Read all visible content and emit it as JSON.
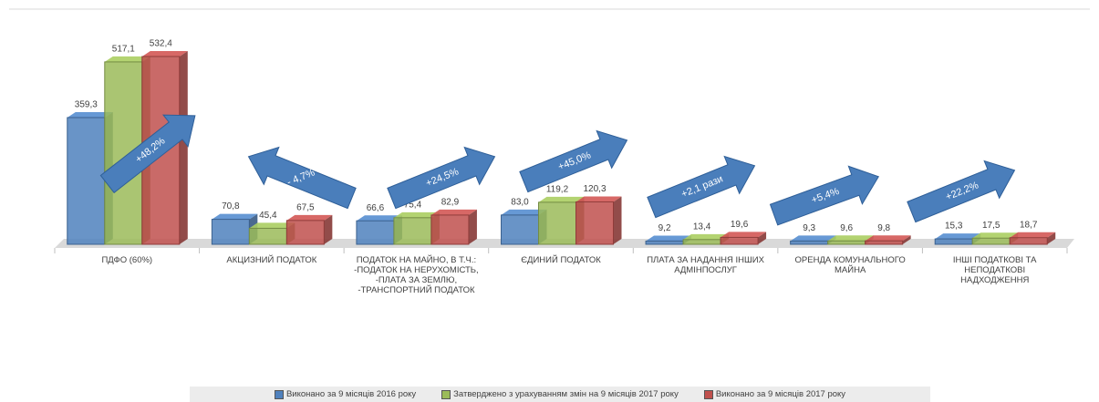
{
  "chart_data": {
    "type": "bar",
    "categories": [
      "ПДФО (60%)",
      "АКЦИЗНИЙ ПОДАТОК",
      "ПОДАТОК НА МАЙНО, В Т.Ч.: -ПОДАТОК НА НЕРУХОМІСТЬ, -ПЛАТА ЗА ЗЕМЛЮ, -ТРАНСПОРТНИЙ ПОДАТОК",
      "ЄДИНИЙ ПОДАТОК",
      "ПЛАТА ЗА НАДАННЯ ІНШИХ АДМІНПОСЛУГ",
      "ОРЕНДА КОМУНАЛЬНОГО МАЙНА",
      "ІНШІ ПОДАТКОВІ ТА НЕПОДАТКОВІ НАДХОДЖЕННЯ"
    ],
    "series": [
      {
        "name": "Виконано за 9 місяців 2016 року",
        "color": "#4f81bd",
        "values": [
          359.3,
          70.8,
          66.6,
          83.0,
          9.2,
          9.3,
          15.3
        ],
        "value_labels": [
          "359,3",
          "70,8",
          "66,6",
          "83,0",
          "9,2",
          "9,3",
          "15,3"
        ]
      },
      {
        "name": "Затверджено з урахуванням змін на 9 місяців 2017 року",
        "color": "#9bbb59",
        "values": [
          517.1,
          45.4,
          75.4,
          119.2,
          13.4,
          9.6,
          17.5
        ],
        "value_labels": [
          "517,1",
          "45,4",
          "75,4",
          "119,2",
          "13,4",
          "9,6",
          "17,5"
        ]
      },
      {
        "name": "Виконано за 9 місяців 2017 року",
        "color": "#c0504d",
        "values": [
          532.4,
          67.5,
          82.9,
          120.3,
          19.6,
          9.8,
          18.7
        ],
        "value_labels": [
          "532,4",
          "67,5",
          "82,9",
          "120,3",
          "19,6",
          "9,8",
          "18,7"
        ]
      }
    ],
    "annotations": [
      "+48,2%",
      "- 4,7%",
      "+24,5%",
      "+45,0%",
      "+2,1 рази",
      "+5,4%",
      "+22,2%"
    ],
    "legend": "bottom"
  }
}
